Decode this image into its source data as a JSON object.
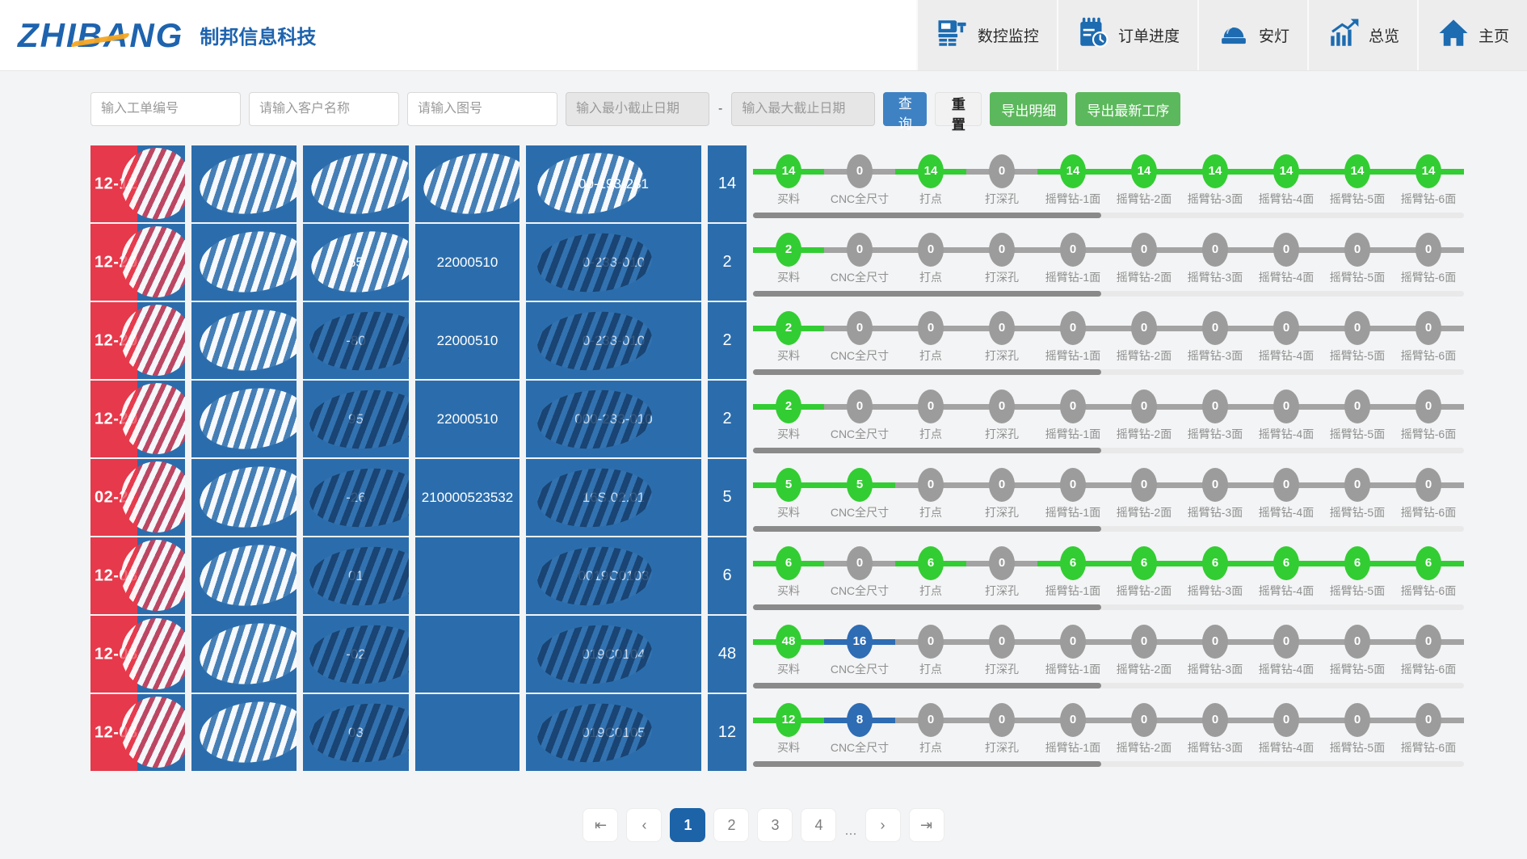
{
  "header": {
    "logo_text": "ZHIBANG",
    "company": "制邦信息科技",
    "nav": [
      {
        "label": "数控监控",
        "icon": "cnc-machine-icon"
      },
      {
        "label": "订单进度",
        "icon": "order-progress-icon"
      },
      {
        "label": "安灯",
        "icon": "andon-lamp-icon"
      },
      {
        "label": "总览",
        "icon": "overview-chart-icon"
      },
      {
        "label": "主页",
        "icon": "home-icon"
      }
    ]
  },
  "filters": {
    "work_order_placeholder": "输入工单编号",
    "customer_placeholder": "请输入客户名称",
    "drawing_placeholder": "请输入图号",
    "min_date_placeholder": "输入最小截止日期",
    "max_date_placeholder": "输入最大截止日期",
    "date_separator": "-",
    "query_label": "查询",
    "reset_label": "重置",
    "export_detail_label": "导出明细",
    "export_latest_label": "导出最新工序"
  },
  "colors": {
    "cell_blue": "#2b6dac",
    "date_red": "#e6394b",
    "step_done_green": "#32cd32",
    "step_active_blue": "#2e6cb4",
    "step_pending_gray": "#9c9c9c",
    "query_button_blue": "#3e82c4",
    "export_button_green": "#5cb85c",
    "active_page_blue": "#1c63a8"
  },
  "process_steps": [
    "买料",
    "CNC全尺寸",
    "打点",
    "打深孔",
    "摇臂钻-1面",
    "摇臂钻-2面",
    "摇臂钻-3面",
    "摇臂钻-4面",
    "摇臂钻-5面",
    "摇臂钻-6面"
  ],
  "rows": [
    {
      "due_date": "12-12",
      "cells": [
        {
          "text": "",
          "blob": "light"
        },
        {
          "text": "",
          "blob": "light"
        },
        {
          "text": "",
          "blob": "light"
        },
        {
          "text": "00-193-281",
          "blob": "light"
        }
      ],
      "qty": "14",
      "steps": [
        {
          "value": "14",
          "state": "done"
        },
        {
          "value": "0",
          "state": "pending"
        },
        {
          "value": "14",
          "state": "done"
        },
        {
          "value": "0",
          "state": "pending"
        },
        {
          "value": "14",
          "state": "done"
        },
        {
          "value": "14",
          "state": "done"
        },
        {
          "value": "14",
          "state": "done"
        },
        {
          "value": "14",
          "state": "done"
        },
        {
          "value": "14",
          "state": "done"
        },
        {
          "value": "14",
          "state": "done"
        }
      ],
      "scroll_thumb_pct": 49
    },
    {
      "due_date": "12-20",
      "cells": [
        {
          "text": "",
          "blob": "light"
        },
        {
          "text": "65",
          "blob": "light"
        },
        {
          "text": "22000510",
          "blob": "none"
        },
        {
          "text": "0-233-010",
          "blob": "dark"
        }
      ],
      "qty": "2",
      "steps": [
        {
          "value": "2",
          "state": "done"
        },
        {
          "value": "0",
          "state": "pending"
        },
        {
          "value": "0",
          "state": "pending"
        },
        {
          "value": "0",
          "state": "pending"
        },
        {
          "value": "0",
          "state": "pending"
        },
        {
          "value": "0",
          "state": "pending"
        },
        {
          "value": "0",
          "state": "pending"
        },
        {
          "value": "0",
          "state": "pending"
        },
        {
          "value": "0",
          "state": "pending"
        },
        {
          "value": "0",
          "state": "pending"
        }
      ],
      "scroll_thumb_pct": 49
    },
    {
      "due_date": "12-20",
      "cells": [
        {
          "text": "",
          "blob": "light"
        },
        {
          "text": "-80",
          "blob": "dark"
        },
        {
          "text": "22000510",
          "blob": "none"
        },
        {
          "text": "0-233-010",
          "blob": "dark"
        }
      ],
      "qty": "2",
      "steps": [
        {
          "value": "2",
          "state": "done"
        },
        {
          "value": "0",
          "state": "pending"
        },
        {
          "value": "0",
          "state": "pending"
        },
        {
          "value": "0",
          "state": "pending"
        },
        {
          "value": "0",
          "state": "pending"
        },
        {
          "value": "0",
          "state": "pending"
        },
        {
          "value": "0",
          "state": "pending"
        },
        {
          "value": "0",
          "state": "pending"
        },
        {
          "value": "0",
          "state": "pending"
        },
        {
          "value": "0",
          "state": "pending"
        }
      ],
      "scroll_thumb_pct": 49
    },
    {
      "due_date": "12-20",
      "cells": [
        {
          "text": "",
          "blob": "light"
        },
        {
          "text": "95",
          "blob": "dark"
        },
        {
          "text": "22000510",
          "blob": "none"
        },
        {
          "text": "000-233-010",
          "blob": "dark"
        }
      ],
      "qty": "2",
      "steps": [
        {
          "value": "2",
          "state": "done"
        },
        {
          "value": "0",
          "state": "pending"
        },
        {
          "value": "0",
          "state": "pending"
        },
        {
          "value": "0",
          "state": "pending"
        },
        {
          "value": "0",
          "state": "pending"
        },
        {
          "value": "0",
          "state": "pending"
        },
        {
          "value": "0",
          "state": "pending"
        },
        {
          "value": "0",
          "state": "pending"
        },
        {
          "value": "0",
          "state": "pending"
        },
        {
          "value": "0",
          "state": "pending"
        }
      ],
      "scroll_thumb_pct": 49
    },
    {
      "due_date": "02-2",
      "cells": [
        {
          "text": "",
          "blob": "light"
        },
        {
          "text": "-26",
          "blob": "dark"
        },
        {
          "text": "210000523532",
          "blob": "none"
        },
        {
          "text": "16S.02.01",
          "blob": "dark"
        }
      ],
      "qty": "5",
      "steps": [
        {
          "value": "5",
          "state": "done"
        },
        {
          "value": "5",
          "state": "done"
        },
        {
          "value": "0",
          "state": "pending"
        },
        {
          "value": "0",
          "state": "pending"
        },
        {
          "value": "0",
          "state": "pending"
        },
        {
          "value": "0",
          "state": "pending"
        },
        {
          "value": "0",
          "state": "pending"
        },
        {
          "value": "0",
          "state": "pending"
        },
        {
          "value": "0",
          "state": "pending"
        },
        {
          "value": "0",
          "state": "pending"
        }
      ],
      "scroll_thumb_pct": 49
    },
    {
      "due_date": "12-08",
      "cells": [
        {
          "text": "",
          "blob": "light"
        },
        {
          "text": "01",
          "blob": "dark"
        },
        {
          "text": "",
          "blob": "none"
        },
        {
          "text": "0019C0103",
          "blob": "dark"
        }
      ],
      "qty": "6",
      "steps": [
        {
          "value": "6",
          "state": "done"
        },
        {
          "value": "0",
          "state": "pending"
        },
        {
          "value": "6",
          "state": "done"
        },
        {
          "value": "0",
          "state": "pending"
        },
        {
          "value": "6",
          "state": "done"
        },
        {
          "value": "6",
          "state": "done"
        },
        {
          "value": "6",
          "state": "done"
        },
        {
          "value": "6",
          "state": "done"
        },
        {
          "value": "6",
          "state": "done"
        },
        {
          "value": "6",
          "state": "done"
        }
      ],
      "scroll_thumb_pct": 49
    },
    {
      "due_date": "12-08",
      "cells": [
        {
          "text": "",
          "blob": "light"
        },
        {
          "text": "-02",
          "blob": "dark"
        },
        {
          "text": "",
          "blob": "none"
        },
        {
          "text": "019C0104",
          "blob": "dark"
        }
      ],
      "qty": "48",
      "steps": [
        {
          "value": "48",
          "state": "done"
        },
        {
          "value": "16",
          "state": "active"
        },
        {
          "value": "0",
          "state": "pending"
        },
        {
          "value": "0",
          "state": "pending"
        },
        {
          "value": "0",
          "state": "pending"
        },
        {
          "value": "0",
          "state": "pending"
        },
        {
          "value": "0",
          "state": "pending"
        },
        {
          "value": "0",
          "state": "pending"
        },
        {
          "value": "0",
          "state": "pending"
        },
        {
          "value": "0",
          "state": "pending"
        }
      ],
      "scroll_thumb_pct": 49
    },
    {
      "due_date": "12-08",
      "cells": [
        {
          "text": "",
          "blob": "light"
        },
        {
          "text": "03",
          "blob": "dark"
        },
        {
          "text": "",
          "blob": "none"
        },
        {
          "text": "019C0105",
          "blob": "dark"
        }
      ],
      "qty": "12",
      "steps": [
        {
          "value": "12",
          "state": "done"
        },
        {
          "value": "8",
          "state": "active"
        },
        {
          "value": "0",
          "state": "pending"
        },
        {
          "value": "0",
          "state": "pending"
        },
        {
          "value": "0",
          "state": "pending"
        },
        {
          "value": "0",
          "state": "pending"
        },
        {
          "value": "0",
          "state": "pending"
        },
        {
          "value": "0",
          "state": "pending"
        },
        {
          "value": "0",
          "state": "pending"
        },
        {
          "value": "0",
          "state": "pending"
        }
      ],
      "scroll_thumb_pct": 49
    }
  ],
  "pagination": {
    "first_icon": "⇤",
    "prev_icon": "‹",
    "pages": [
      "1",
      "2",
      "3",
      "4"
    ],
    "active_page": "1",
    "ellipsis": "...",
    "next_icon": "›",
    "last_icon": "⇥"
  }
}
